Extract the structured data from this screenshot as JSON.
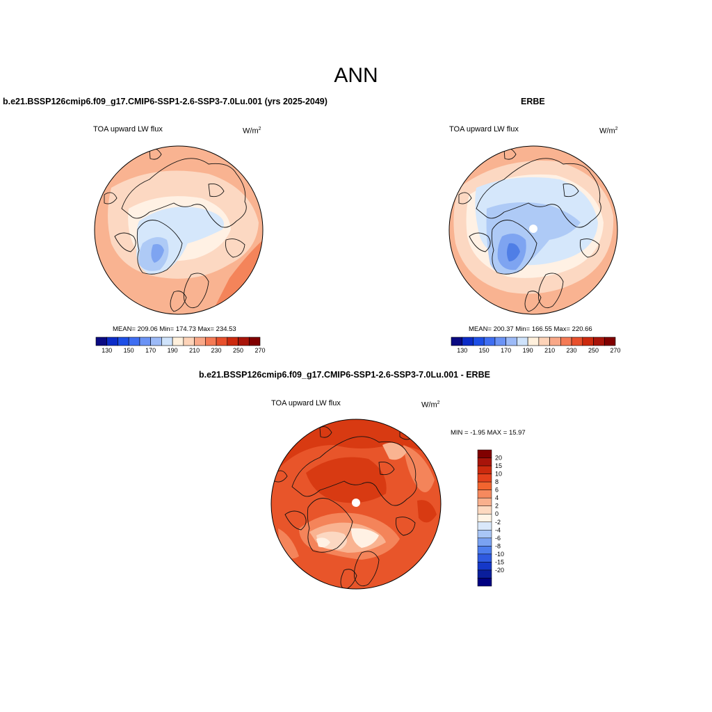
{
  "title": "ANN",
  "panels": [
    {
      "id": "model",
      "title": "b.e21.BSSP126cmip6.f09_g17.CMIP6-SSP1-2.6-SSP3-7.0Lu.001 (yrs 2025-2049)",
      "variable": "TOA upward LW flux",
      "units_base": "W/m",
      "units_exp": "2",
      "stats": {
        "mean": "209.06",
        "min": "174.73",
        "max": "234.53"
      },
      "stats_text": "MEAN= 209.06  Min= 174.73  Max= 234.53"
    },
    {
      "id": "obs",
      "title": "ERBE",
      "variable": "TOA upward LW flux",
      "units_base": "W/m",
      "units_exp": "2",
      "stats": {
        "mean": "200.37",
        "min": "166.55",
        "max": "220.66"
      },
      "stats_text": "MEAN= 200.37  Min= 166.55  Max= 220.66"
    },
    {
      "id": "diff",
      "title": "b.e21.BSSP126cmip6.f09_g17.CMIP6-SSP1-2.6-SSP3-7.0Lu.001 - ERBE",
      "variable": "TOA upward LW flux",
      "units_base": "W/m",
      "units_exp": "2",
      "stats": {
        "min": "-1.95",
        "max": "15.97"
      },
      "stats_text": "MIN =  -1.95 MAX =  15.97"
    }
  ],
  "colorbar_main": {
    "labels": [
      "130",
      "150",
      "170",
      "190",
      "210",
      "230",
      "250",
      "270"
    ],
    "colors": [
      "#0a0a82",
      "#0c2cc7",
      "#1e4fe6",
      "#3f6ef2",
      "#6b93f5",
      "#9cbaf7",
      "#cfe3fb",
      "#fff0dc",
      "#fdd3b8",
      "#f9a888",
      "#f47a55",
      "#e8502c",
      "#cc2a0e",
      "#a8140a",
      "#800000"
    ]
  },
  "colorbar_diff": {
    "labels": [
      "20",
      "15",
      "10",
      "8",
      "6",
      "4",
      "2",
      "0",
      "-2",
      "-4",
      "-6",
      "-8",
      "-10",
      "-15",
      "-20"
    ],
    "colors": [
      "#800000",
      "#a8140a",
      "#cc2a0e",
      "#e4411c",
      "#f2652f",
      "#f6895e",
      "#f9b08d",
      "#fdd9c0",
      "#fff4e6",
      "#d9e8fa",
      "#a9c6f6",
      "#7aa2f2",
      "#4d7ded",
      "#2f5ae0",
      "#1538c8",
      "#0a1e9c",
      "#000080"
    ]
  },
  "palette": {
    "deep_red": "#d83a12",
    "red": "#e8552a",
    "orange": "#f4845a",
    "peach": "#f9b391",
    "light_peach": "#fcd8c2",
    "cream": "#fff1e4",
    "pale_blue": "#d5e7fb",
    "light_blue": "#aecaf6",
    "mid_blue": "#7ea4f1",
    "blue": "#4f7ee6",
    "missing": "#ffffff"
  }
}
